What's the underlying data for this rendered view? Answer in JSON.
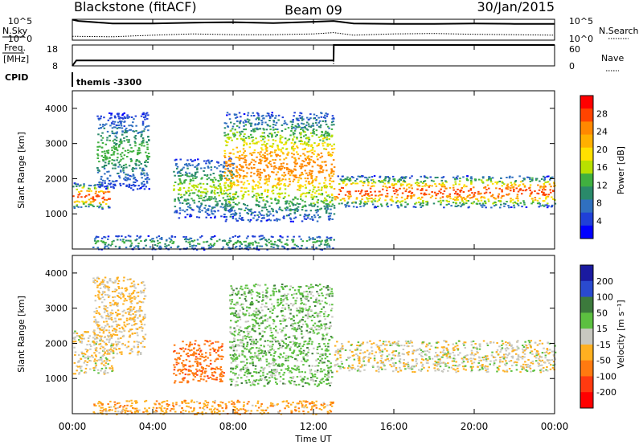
{
  "header": {
    "radar": "Blackstone (fitACF)",
    "beam": "Beam 09",
    "date": "30/Jan/2015"
  },
  "top_panels": {
    "nsky_label": "N.Sky",
    "nsky_ticks": [
      "10^5",
      "10^0"
    ],
    "nsearch_label": "N.Search",
    "freq_label_1": "Freq.",
    "freq_label_2": "[MHz]",
    "freq_ticks": [
      "18",
      "8"
    ],
    "nave_label": "Nave",
    "nave_ticks": [
      "60",
      "0"
    ],
    "cpid_label": "CPID",
    "cpid_value": "themis -3300"
  },
  "power_panel": {
    "ylabel": "Slant Range [km]",
    "yticks": [
      "4000",
      "3000",
      "2000",
      "1000"
    ],
    "colorbar_label": "Power [dB]",
    "colorbar_ticks": [
      "28",
      "24",
      "20",
      "16",
      "12",
      "8",
      "4"
    ],
    "colors": [
      "#ff0000",
      "#ff4400",
      "#ff8800",
      "#ffb000",
      "#ffe000",
      "#b8e000",
      "#40b040",
      "#2a8a6a",
      "#3070c0",
      "#2040d8",
      "#0000ff"
    ]
  },
  "velocity_panel": {
    "ylabel": "Slant Range [km]",
    "yticks": [
      "4000",
      "3000",
      "2000",
      "1000"
    ],
    "colorbar_label": "Velocity [m s⁻¹]",
    "colorbar_ticks": [
      "200",
      "100",
      "50",
      "15",
      "-15",
      "-50",
      "-100",
      "-200"
    ],
    "colors": [
      "#1a1aa0",
      "#2a4acf",
      "#3c7a3c",
      "#5cc040",
      "#c8c8c0",
      "#ffb020",
      "#ff7a10",
      "#ff3a10",
      "#ff0000"
    ]
  },
  "xaxis": {
    "ticks": [
      "00:00",
      "04:00",
      "08:00",
      "12:00",
      "16:00",
      "20:00",
      "00:00"
    ],
    "label": "Time UT"
  },
  "chart_data": [
    {
      "type": "line",
      "panel": "N.Sky / N.Search",
      "x_hours": [
        0,
        0.3,
        2,
        4,
        6,
        8,
        10,
        12,
        13,
        14,
        16,
        18,
        20,
        22,
        24
      ],
      "nsky_log10": [
        4.9,
        4.6,
        4.0,
        4.0,
        4.2,
        4.3,
        4.1,
        4.4,
        4.6,
        4.0,
        3.9,
        3.9,
        4.0,
        3.9,
        3.9
      ],
      "nsearch_log10": [
        0.9,
        0.9,
        0.8,
        1.2,
        1.5,
        1.3,
        1.3,
        1.5,
        1.8,
        1.2,
        1.5,
        1.6,
        1.4,
        1.3,
        1.2
      ],
      "ylim_log10": [
        0,
        5
      ]
    },
    {
      "type": "line",
      "panel": "Freq / Nave",
      "x_hours": [
        0,
        0.2,
        13.0,
        13.01,
        24
      ],
      "freq_mhz": [
        8,
        10.6,
        10.6,
        18,
        18
      ],
      "nave": [
        0,
        0,
        0,
        60,
        60
      ],
      "ylim_freq": [
        8,
        18
      ],
      "ylim_nave": [
        0,
        60
      ]
    },
    {
      "type": "heatmap",
      "panel": "Power",
      "xlim_hours": [
        0,
        24
      ],
      "ylim_km": [
        0,
        4500
      ],
      "color_scale_db": [
        0,
        30
      ],
      "features": [
        {
          "name": "morning band",
          "x_hours": [
            0,
            1.9
          ],
          "range_km": [
            1150,
            1900
          ],
          "peak_db": 28
        },
        {
          "name": "rising arc",
          "x_hours": [
            1.2,
            3.8
          ],
          "range_km": [
            1700,
            3900
          ],
          "peak_db": 12
        },
        {
          "name": "mid-day patches",
          "x_hours": [
            5.0,
            8.0
          ],
          "range_km": [
            900,
            2600
          ],
          "peak_db": 14
        },
        {
          "name": "descending arc",
          "x_hours": [
            7.5,
            13.0
          ],
          "range_km": [
            800,
            3900
          ],
          "peak_db": 24
        },
        {
          "name": "evening band",
          "x_hours": [
            13.0,
            24.0
          ],
          "range_km": [
            1200,
            2100
          ],
          "peak_db": 28
        },
        {
          "name": "near-range ground",
          "x_hours": [
            1.0,
            13.0
          ],
          "range_km": [
            0,
            400
          ],
          "peak_db": 12
        }
      ]
    },
    {
      "type": "heatmap",
      "panel": "Velocity",
      "xlim_hours": [
        0,
        24
      ],
      "ylim_km": [
        0,
        4500
      ],
      "color_scale_ms": [
        -200,
        200
      ],
      "features": [
        {
          "name": "morning band",
          "x_hours": [
            0,
            2.0
          ],
          "range_km": [
            1150,
            2400
          ],
          "velocity_ms": -10
        },
        {
          "name": "rising arc",
          "x_hours": [
            1.0,
            3.6
          ],
          "range_km": [
            1700,
            3900
          ],
          "velocity_ms": -20
        },
        {
          "name": "westward flow patch",
          "x_hours": [
            5.0,
            7.5
          ],
          "range_km": [
            900,
            2100
          ],
          "velocity_ms": -80
        },
        {
          "name": "descending arc",
          "x_hours": [
            7.8,
            12.9
          ],
          "range_km": [
            800,
            3700
          ],
          "velocity_ms": 30
        },
        {
          "name": "evening band",
          "x_hours": [
            13.0,
            24.0
          ],
          "range_km": [
            1200,
            2100
          ],
          "velocity_ms": -5
        },
        {
          "name": "near-range ground",
          "x_hours": [
            1.0,
            13.0
          ],
          "range_km": [
            0,
            400
          ],
          "velocity_ms": -40
        }
      ]
    }
  ]
}
